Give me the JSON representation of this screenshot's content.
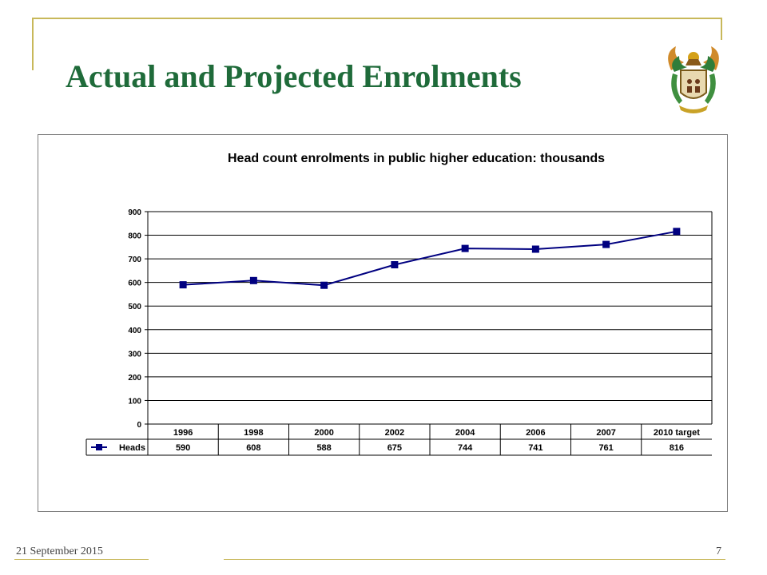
{
  "slide": {
    "title": "Actual and Projected Enrolments",
    "footer_date": "21 September 2015",
    "page_number": "7",
    "title_color": "#1f6b3a",
    "frame_color": "#c8b85a"
  },
  "chart_data": {
    "type": "line",
    "title": "Head count enrolments in public higher education: thousands",
    "categories": [
      "1996",
      "1998",
      "2000",
      "2002",
      "2004",
      "2006",
      "2007",
      "2010 target"
    ],
    "series": [
      {
        "name": "Heads",
        "values": [
          590,
          608,
          588,
          675,
          744,
          741,
          761,
          816
        ],
        "color": "#000080"
      }
    ],
    "ylim": [
      0,
      900
    ],
    "yticks": [
      0,
      100,
      200,
      300,
      400,
      500,
      600,
      700,
      800,
      900
    ],
    "grid": true,
    "legend": "data-table",
    "marker": "square"
  }
}
